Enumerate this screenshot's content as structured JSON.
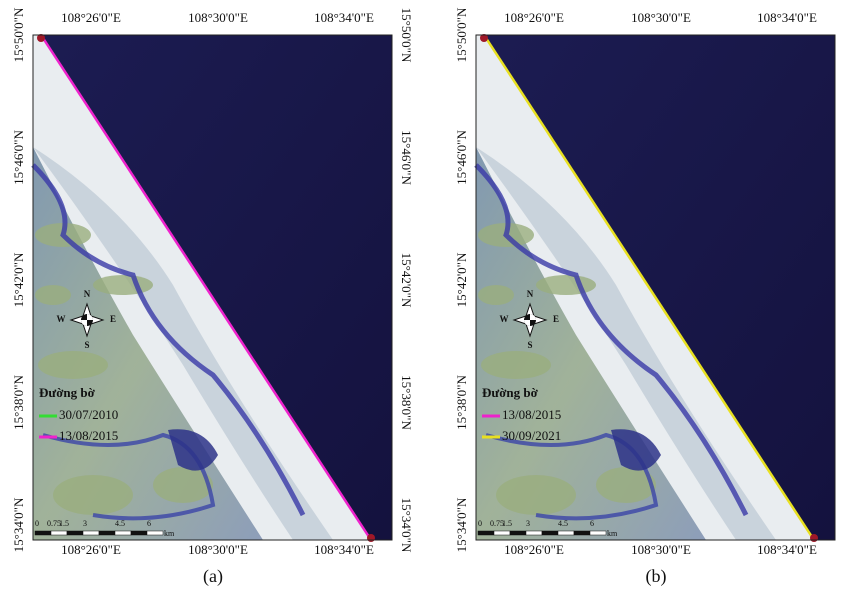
{
  "axes": {
    "lat_labels": [
      "15°50'0\"N",
      "15°46'0\"N",
      "15°42'0\"N",
      "15°38'0\"N",
      "15°34'0\"N"
    ],
    "lon_labels": [
      "108°26'0\"E",
      "108°30'0\"E",
      "108°34'0\"E"
    ]
  },
  "compass": [
    "N",
    "W",
    "E",
    "S"
  ],
  "scale_bar": {
    "labels": [
      "0",
      "0.75",
      "1.5",
      "3",
      "4.5",
      "6"
    ],
    "unit": "km"
  },
  "panels": [
    {
      "caption": "(a)",
      "right_axis": true,
      "legend": {
        "title": "Đường bờ",
        "entries": [
          {
            "label": "30/07/2010",
            "color": "#33dd33"
          },
          {
            "label": "13/08/2015",
            "color": "#ee22cc"
          }
        ]
      },
      "shoreline_color": "#ee22cc"
    },
    {
      "caption": "(b)",
      "right_axis": false,
      "legend": {
        "title": "Đường bờ",
        "entries": [
          {
            "label": "13/08/2015",
            "color": "#ee22cc"
          },
          {
            "label": "30/09/2021",
            "color": "#e8e020"
          }
        ]
      },
      "shoreline_color": "#e8e020"
    }
  ]
}
